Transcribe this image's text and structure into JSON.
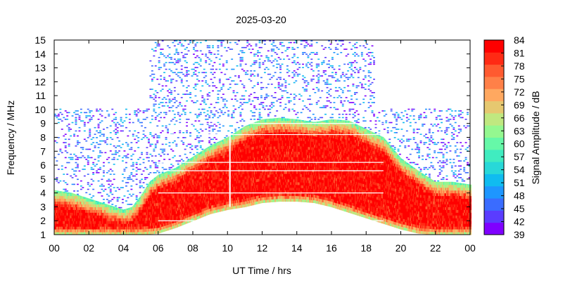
{
  "chart_data": {
    "type": "heatmap",
    "title": "2025-03-20",
    "xlabel": "UT Time / hrs",
    "ylabel": "Frequency / MHz",
    "colorbar_label": "Signal Amplitude / dB",
    "xlim": [
      0,
      24
    ],
    "ylim": [
      1,
      15
    ],
    "x_ticks": [
      "00",
      "02",
      "04",
      "06",
      "08",
      "10",
      "12",
      "14",
      "16",
      "18",
      "20",
      "22",
      "00"
    ],
    "y_ticks": [
      "1",
      "2",
      "3",
      "4",
      "5",
      "6",
      "7",
      "8",
      "9",
      "10",
      "11",
      "12",
      "13",
      "14",
      "15"
    ],
    "colorbar_ticks": [
      "39",
      "42",
      "45",
      "48",
      "51",
      "54",
      "57",
      "60",
      "63",
      "66",
      "69",
      "72",
      "75",
      "78",
      "81",
      "84"
    ],
    "colorbar_range": [
      39,
      84
    ],
    "colorscale": [
      "#7f00ff",
      "#5a3cff",
      "#3a6cff",
      "#1e96ff",
      "#10bcf0",
      "#28d8d8",
      "#40ecc0",
      "#66f8a8",
      "#94f890",
      "#c0e880",
      "#e6c870",
      "#ffa860",
      "#ff8048",
      "#ff5a30",
      "#ff2a14",
      "#ff0000"
    ],
    "grid": false,
    "legend": "colorbar-right",
    "strong_band_upper_edge_mhz": [
      [
        0,
        4.2
      ],
      [
        1,
        4.0
      ],
      [
        2,
        3.6
      ],
      [
        3,
        3.2
      ],
      [
        4,
        2.8
      ],
      [
        4.5,
        3.0
      ],
      [
        5,
        3.8
      ],
      [
        5.5,
        4.8
      ],
      [
        6,
        5.3
      ],
      [
        7,
        5.8
      ],
      [
        8,
        6.6
      ],
      [
        9,
        7.4
      ],
      [
        10,
        8.0
      ],
      [
        11,
        8.8
      ],
      [
        12,
        9.3
      ],
      [
        13,
        9.4
      ],
      [
        14,
        9.3
      ],
      [
        15,
        9.1
      ],
      [
        16,
        9.3
      ],
      [
        17,
        9.2
      ],
      [
        18,
        8.6
      ],
      [
        19,
        8.0
      ],
      [
        20,
        6.5
      ],
      [
        21,
        5.6
      ],
      [
        22,
        4.8
      ],
      [
        23,
        4.8
      ],
      [
        24,
        4.6
      ]
    ],
    "strong_band_lower_edge_mhz": [
      [
        0,
        1.0
      ],
      [
        4.5,
        1.0
      ],
      [
        5,
        1.0
      ],
      [
        6,
        1.1
      ],
      [
        7,
        1.5
      ],
      [
        8,
        2.0
      ],
      [
        9,
        2.5
      ],
      [
        10,
        2.8
      ],
      [
        11,
        3.0
      ],
      [
        12,
        3.3
      ],
      [
        13,
        3.4
      ],
      [
        14,
        3.4
      ],
      [
        15,
        3.3
      ],
      [
        16,
        3.0
      ],
      [
        17,
        2.6
      ],
      [
        18,
        2.2
      ],
      [
        19,
        1.8
      ],
      [
        20,
        1.4
      ],
      [
        21,
        1.1
      ],
      [
        22,
        1.0
      ],
      [
        24,
        1.0
      ]
    ],
    "sparse_noise_upper_mhz": [
      [
        0,
        10.0
      ],
      [
        5.5,
        10.0
      ],
      [
        5.5,
        15.0
      ],
      [
        18.5,
        15.0
      ],
      [
        18.5,
        10.0
      ],
      [
        24,
        10.0
      ]
    ]
  }
}
